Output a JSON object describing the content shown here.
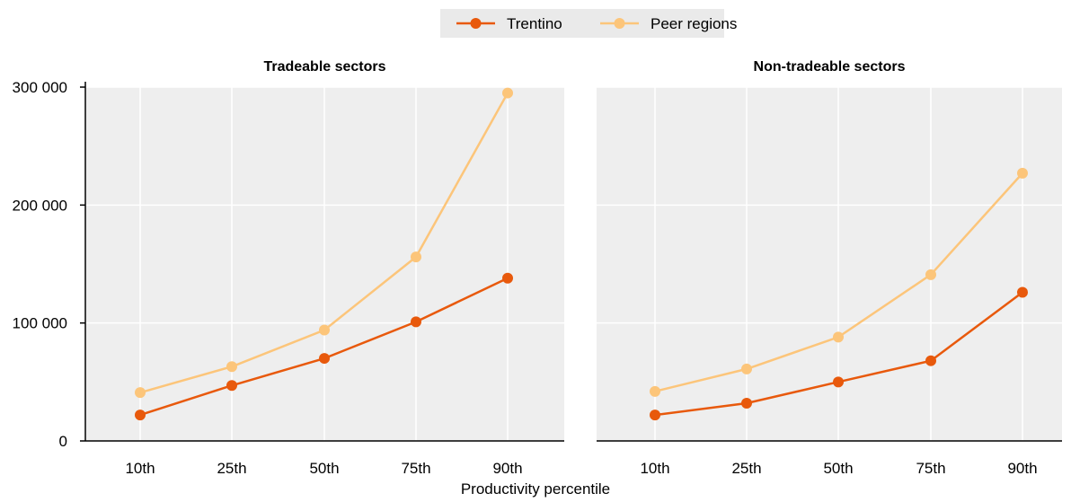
{
  "chart_data": {
    "type": "line",
    "legend": {
      "placement": "top-center",
      "entries": [
        {
          "name": "Trentino",
          "color": "#e8590c"
        },
        {
          "name": "Peer regions",
          "color": "#fcc57a"
        }
      ]
    },
    "xlabel": "Productivity percentile",
    "ylim": [
      0,
      300000
    ],
    "yticks": [
      "0",
      "100 000",
      "200 000",
      "300 000"
    ],
    "grid": true,
    "panels": [
      {
        "title": "Tradeable sectors",
        "categories": [
          "10th",
          "25th",
          "50th",
          "75th",
          "90th"
        ],
        "series": [
          {
            "name": "Trentino",
            "values": [
              22000,
              47000,
              70000,
              101000,
              138000
            ]
          },
          {
            "name": "Peer regions",
            "values": [
              41000,
              63000,
              94000,
              156000,
              295000
            ]
          }
        ]
      },
      {
        "title": "Non-tradeable sectors",
        "categories": [
          "10th",
          "25th",
          "50th",
          "75th",
          "90th"
        ],
        "series": [
          {
            "name": "Trentino",
            "values": [
              22000,
              32000,
              50000,
              68000,
              126000
            ]
          },
          {
            "name": "Peer regions",
            "values": [
              42000,
              61000,
              88000,
              141000,
              227000
            ]
          }
        ]
      }
    ]
  }
}
